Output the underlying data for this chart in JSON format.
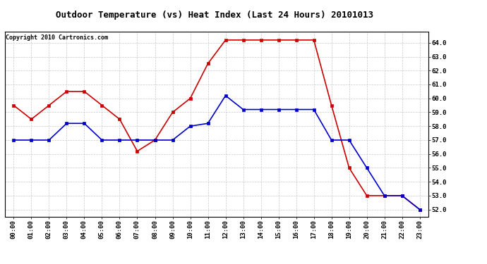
{
  "title": "Outdoor Temperature (vs) Heat Index (Last 24 Hours) 20101013",
  "copyright_text": "Copyright 2010 Cartronics.com",
  "hours": [
    "00:00",
    "01:00",
    "02:00",
    "03:00",
    "04:00",
    "05:00",
    "06:00",
    "07:00",
    "08:00",
    "09:00",
    "10:00",
    "11:00",
    "12:00",
    "13:00",
    "14:00",
    "15:00",
    "16:00",
    "17:00",
    "18:00",
    "19:00",
    "20:00",
    "21:00",
    "22:00",
    "23:00"
  ],
  "red_values": [
    59.5,
    58.5,
    59.5,
    60.5,
    60.5,
    59.5,
    58.5,
    56.2,
    57.0,
    59.0,
    60.0,
    62.5,
    64.2,
    64.2,
    64.2,
    64.2,
    64.2,
    64.2,
    59.5,
    55.0,
    53.0,
    53.0,
    53.0,
    52.0
  ],
  "blue_values": [
    57.0,
    57.0,
    57.0,
    58.2,
    58.2,
    57.0,
    57.0,
    57.0,
    57.0,
    57.0,
    58.0,
    58.2,
    60.2,
    59.2,
    59.2,
    59.2,
    59.2,
    59.2,
    57.0,
    57.0,
    55.0,
    53.0,
    53.0,
    52.0
  ],
  "red_color": "#cc0000",
  "blue_color": "#0000cc",
  "background_color": "#ffffff",
  "plot_bg_color": "#ffffff",
  "grid_color": "#bbbbbb",
  "ylim_min": 51.5,
  "ylim_max": 64.8,
  "ytick_min": 52.0,
  "ytick_max": 64.0,
  "ytick_step": 1.0,
  "title_fontsize": 9,
  "copyright_fontsize": 6,
  "tick_fontsize": 6.5,
  "marker": "s",
  "markersize": 2.5,
  "linewidth": 1.2
}
